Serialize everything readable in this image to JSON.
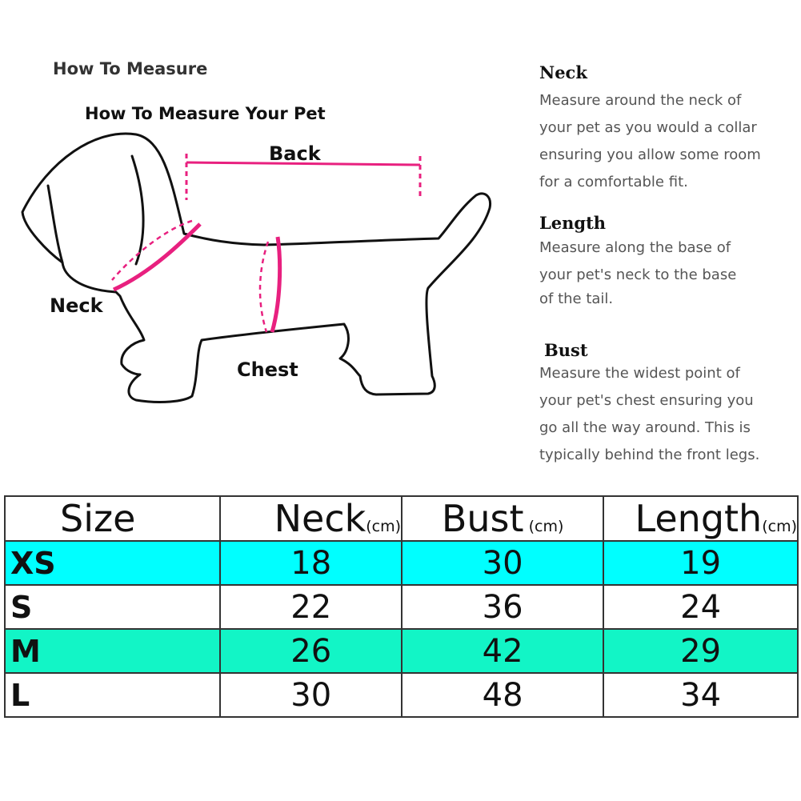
{
  "guide": {
    "title": "How To Measure",
    "subtitle": "How To Measure Your Pet",
    "labels": {
      "back": "Back",
      "neck": "Neck",
      "chest": "Chest"
    },
    "accent_color": "#e8207f"
  },
  "instructions": [
    {
      "heading": "Neck",
      "lines": [
        "Measure around the neck of",
        "your pet as you would a collar",
        "ensuring you allow some room",
        "for a comfortable fit."
      ]
    },
    {
      "heading": "Length",
      "lines": [
        "Measure along the base of",
        "your pet's neck to the base",
        "of the tail."
      ]
    },
    {
      "heading": "Bust",
      "lines": [
        "Measure the widest point of",
        "your pet's chest ensuring you",
        "go all the way around. This is",
        "typically behind the front legs."
      ]
    }
  ],
  "size_table": {
    "headers": [
      {
        "label": "Size",
        "unit": ""
      },
      {
        "label": "Neck",
        "unit": "(cm)"
      },
      {
        "label": "Bust",
        "unit": " (cm)"
      },
      {
        "label": "Length",
        "unit": "(cm)"
      }
    ],
    "rows": [
      {
        "size": "XS",
        "neck": "18",
        "bust": "30",
        "length": "19",
        "color": "#00ffff"
      },
      {
        "size": "S",
        "neck": "22",
        "bust": "36",
        "length": "24",
        "color": "#ffffff"
      },
      {
        "size": "M",
        "neck": "26",
        "bust": "42",
        "length": "29",
        "color": "#12f5c6"
      },
      {
        "size": "L",
        "neck": "30",
        "bust": "48",
        "length": "34",
        "color": "#ffffff"
      }
    ]
  }
}
